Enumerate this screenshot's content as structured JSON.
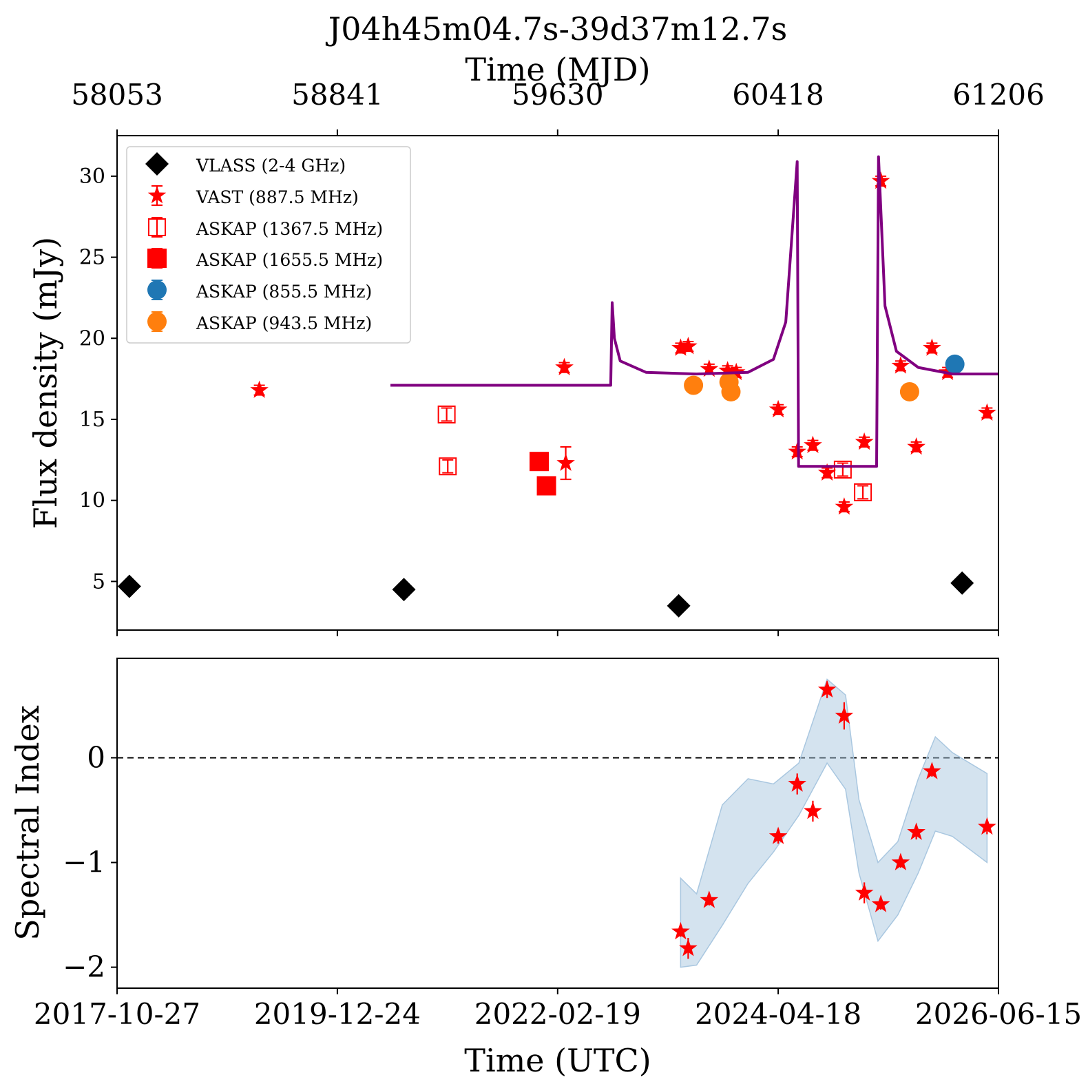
{
  "chart_data": [
    {
      "type": "scatter",
      "title": "J04h45m04.7s-39d37m12.7s",
      "xlabel": "Time (UTC)",
      "x2label": "Time (MJD)",
      "ylabel": "Flux density (mJy)",
      "xlim": [
        "2017-10-27",
        "2026-06-15"
      ],
      "ylim": [
        2,
        32.5
      ],
      "xticks": [
        "2017-10-27",
        "2019-12-24",
        "2022-02-19",
        "2024-04-18",
        "2026-06-15"
      ],
      "x2ticks": [
        "58053",
        "58841",
        "59630",
        "60418",
        "61206"
      ],
      "yticks": [
        "5",
        "10",
        "15",
        "20",
        "25",
        "30"
      ],
      "legend_position": "top-left",
      "series": [
        {
          "name": "VLASS (2-4 GHz)",
          "marker": "diamond",
          "color": "#000000",
          "points": [
            [
              "2017-12-10",
              4.7
            ],
            [
              "2020-08-18",
              4.5
            ],
            [
              "2023-04-28",
              3.5
            ],
            [
              "2026-02-05",
              4.9
            ]
          ]
        },
        {
          "name": "VAST (887.5 MHz)",
          "marker": "star",
          "color": "#ff0000",
          "points": [
            [
              "2019-03-20",
              16.8,
              0.3
            ],
            [
              "2022-03-15",
              18.2,
              0.3
            ],
            [
              "2022-03-20",
              12.3,
              1.0
            ],
            [
              "2023-05-05",
              19.4,
              0.3
            ],
            [
              "2023-06-01",
              19.5,
              0.3
            ],
            [
              "2023-08-15",
              18.1,
              0.3
            ],
            [
              "2023-10-20",
              18.0,
              0.3
            ],
            [
              "2023-11-20",
              17.9,
              0.3
            ],
            [
              "2024-04-18",
              15.6,
              0.3
            ],
            [
              "2024-06-25",
              13.0,
              0.3
            ],
            [
              "2024-08-20",
              13.4,
              0.3
            ],
            [
              "2024-10-10",
              11.7,
              0.3
            ],
            [
              "2024-12-10",
              9.6,
              0.3
            ],
            [
              "2025-02-20",
              13.6,
              0.3
            ],
            [
              "2025-04-20",
              29.7,
              0.3
            ],
            [
              "2025-06-30",
              18.3,
              0.3
            ],
            [
              "2025-08-25",
              13.3,
              0.3
            ],
            [
              "2025-10-20",
              19.4,
              0.3
            ],
            [
              "2025-12-15",
              17.9,
              0.3
            ],
            [
              "2026-05-05",
              15.4,
              0.3
            ]
          ]
        },
        {
          "name": "ASKAP (1367.5 MHz)",
          "marker": "open-square",
          "color": "#ff0000",
          "points": [
            [
              "2021-01-18",
              15.3,
              0.4
            ],
            [
              "2021-01-22",
              12.1,
              0.4
            ],
            [
              "2024-12-05",
              11.9,
              0.4
            ],
            [
              "2025-02-15",
              10.5,
              0.4
            ]
          ]
        },
        {
          "name": "ASKAP (1655.5 MHz)",
          "marker": "square",
          "color": "#ff0000",
          "points": [
            [
              "2021-12-15",
              12.4
            ],
            [
              "2022-01-10",
              10.9
            ]
          ]
        },
        {
          "name": "ASKAP (855.5 MHz)",
          "marker": "circle",
          "color": "#1f77b4",
          "points": [
            [
              "2026-01-10",
              18.4
            ]
          ]
        },
        {
          "name": "ASKAP (943.5 MHz)",
          "marker": "circle",
          "color": "#ff7f0e",
          "points": [
            [
              "2023-06-20",
              17.1
            ],
            [
              "2023-10-25",
              17.3
            ],
            [
              "2023-11-01",
              16.7
            ],
            [
              "2025-08-01",
              16.7
            ]
          ]
        },
        {
          "name": "",
          "type": "line",
          "color": "#800080",
          "points": [
            [
              "2020-07-01",
              17.1
            ],
            [
              "2022-08-28",
              17.1
            ],
            [
              "2022-09-02",
              22.2
            ],
            [
              "2022-09-10",
              20.0
            ],
            [
              "2022-10-01",
              18.6
            ],
            [
              "2023-01-01",
              17.9
            ],
            [
              "2023-07-01",
              17.8
            ],
            [
              "2024-01-01",
              17.9
            ],
            [
              "2024-04-01",
              18.7
            ],
            [
              "2024-05-15",
              21.0
            ],
            [
              "2024-06-25",
              30.9
            ],
            [
              "2024-06-30",
              12.1
            ],
            [
              "2025-04-05",
              12.1
            ],
            [
              "2025-04-12",
              31.2
            ],
            [
              "2025-05-05",
              22.0
            ],
            [
              "2025-06-15",
              19.2
            ],
            [
              "2025-09-01",
              18.2
            ],
            [
              "2026-01-01",
              17.8
            ],
            [
              "2026-06-15",
              17.8
            ]
          ]
        }
      ]
    },
    {
      "type": "scatter",
      "xlabel": "Time (UTC)",
      "ylabel": "Spectral Index",
      "xlim": [
        "2017-10-27",
        "2026-06-15"
      ],
      "ylim": [
        -2.2,
        0.95
      ],
      "yticks": [
        "−2",
        "−1",
        "0"
      ],
      "reference_line": {
        "y": 0,
        "style": "dashed",
        "color": "#000000"
      },
      "series": [
        {
          "name": "",
          "marker": "star",
          "color": "#ff0000",
          "points": [
            [
              "2023-05-05",
              -1.66,
              0.05
            ],
            [
              "2023-06-01",
              -1.82,
              0.1
            ],
            [
              "2023-08-15",
              -1.36,
              0.05
            ],
            [
              "2024-04-18",
              -0.75,
              0.07
            ],
            [
              "2024-06-25",
              -0.25,
              0.1
            ],
            [
              "2024-08-20",
              -0.51,
              0.1
            ],
            [
              "2024-10-10",
              0.65,
              0.08
            ],
            [
              "2024-12-10",
              0.4,
              0.13
            ],
            [
              "2025-02-20",
              -1.29,
              0.1
            ],
            [
              "2025-04-20",
              -1.4,
              0.05
            ],
            [
              "2025-06-30",
              -1.0,
              0.05
            ],
            [
              "2025-08-25",
              -0.71,
              0.07
            ],
            [
              "2025-10-20",
              -0.13,
              0.05
            ],
            [
              "2026-05-05",
              -0.66,
              0.07
            ]
          ]
        },
        {
          "name": "",
          "type": "band",
          "color": "#a9c7e0",
          "points": [
            [
              "2023-05-05",
              -1.15,
              -2.0
            ],
            [
              "2023-07-01",
              -1.3,
              -1.98
            ],
            [
              "2023-10-01",
              -0.45,
              -1.6
            ],
            [
              "2024-01-01",
              -0.2,
              -1.2
            ],
            [
              "2024-04-01",
              -0.25,
              -0.9
            ],
            [
              "2024-07-01",
              -0.05,
              -0.55
            ],
            [
              "2024-10-10",
              0.75,
              -0.05
            ],
            [
              "2024-12-15",
              0.6,
              -0.3
            ],
            [
              "2025-02-01",
              -0.4,
              -1.1
            ],
            [
              "2025-04-10",
              -1.0,
              -1.75
            ],
            [
              "2025-06-20",
              -0.8,
              -1.5
            ],
            [
              "2025-09-01",
              -0.2,
              -1.1
            ],
            [
              "2025-11-01",
              0.2,
              -0.7
            ],
            [
              "2026-01-01",
              0.05,
              -0.75
            ],
            [
              "2026-05-05",
              -0.15,
              -1.0
            ]
          ]
        }
      ]
    }
  ]
}
